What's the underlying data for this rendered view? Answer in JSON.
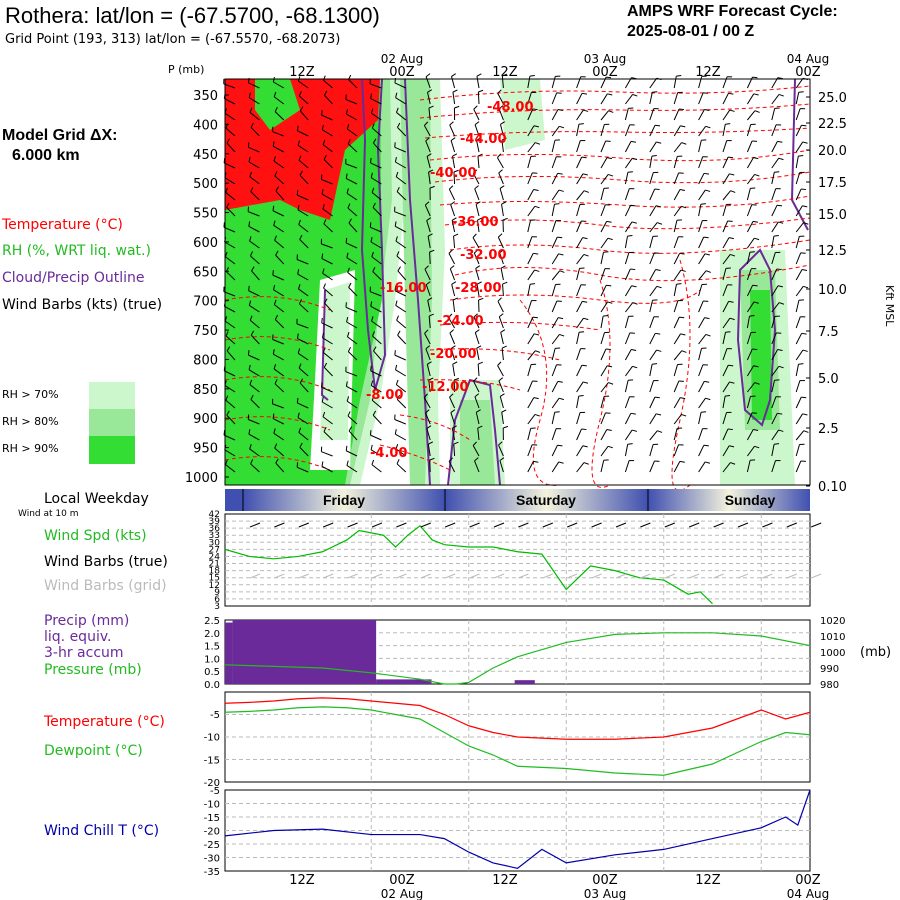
{
  "header": {
    "title": "Rothera:  lat/lon = (-67.5700, -68.1300)",
    "grid_point": "Grid Point (193, 313) lat/lon = (-67.5570, -68.2073)",
    "cycle_label": "AMPS WRF Forecast Cycle:",
    "cycle_value": "2025-08-01 / 00  Z"
  },
  "model_grid": {
    "line1": "Model Grid ΔX:",
    "line2": "6.000 km"
  },
  "legend": {
    "temperature": "Temperature (°C)",
    "rh": "RH (%, WRT liq. wat.)",
    "cloud": "Cloud/Precip Outline",
    "wind": "Wind Barbs (kts) (true)",
    "rh_levels": [
      {
        "label": "RH > 70%",
        "color": "#ccf7cc"
      },
      {
        "label": "RH > 80%",
        "color": "#99e899"
      },
      {
        "label": "RH > 90%",
        "color": "#33dd33"
      }
    ]
  },
  "colors": {
    "temp": "#ff0000",
    "rh90": "#33dd33",
    "rh80": "#99e899",
    "rh70": "#ccf7cc",
    "cloud": "#6a2a9a",
    "wind": "#00bb00",
    "grid_barb": "#bbbbbb",
    "precip": "#6a2a9a",
    "pressure": "#22bb22",
    "windchill": "#0000aa",
    "hot": "#ff0000"
  },
  "time_axis": {
    "top_ticks": [
      "12Z",
      "00Z",
      "12Z",
      "00Z",
      "12Z",
      "00Z"
    ],
    "top_dates": [
      "02 Aug",
      "03 Aug",
      "04 Aug"
    ],
    "bottom_ticks": [
      "12Z",
      "00Z",
      "12Z",
      "00Z",
      "12Z",
      "00Z"
    ],
    "bottom_dates": [
      "02 Aug",
      "03 Aug",
      "04 Aug"
    ]
  },
  "cross_section": {
    "p_label": "P (mb)",
    "pressure_levels": [
      "350",
      "400",
      "450",
      "500",
      "550",
      "600",
      "650",
      "700",
      "750",
      "800",
      "850",
      "900",
      "950",
      "1000"
    ],
    "height_label": "Kft MSL",
    "heights": [
      "25.0",
      "22.5",
      "20.0",
      "17.5",
      "15.0",
      "12.5",
      "10.0",
      "7.5",
      "5.0",
      "2.5",
      "0.10"
    ],
    "isotherm_labels": [
      "-48.00",
      "-44.00",
      "-40.00",
      "-36.00",
      "-32.00",
      "-28.00",
      "-24.00",
      "-20.00",
      "-16.00",
      "-12.00",
      "-8.00",
      "-4.00"
    ]
  },
  "weekday": {
    "label": "Local Weekday",
    "days": [
      "Friday",
      "Saturday",
      "Sunday"
    ]
  },
  "chart_data": [
    {
      "type": "line",
      "panel": "wind",
      "legend": [
        "Wind Spd (kts)",
        "Wind Barbs (true)",
        "Wind Barbs (grid)"
      ],
      "subtitle": "Wind at 10 m",
      "yticks": [
        "42",
        "39",
        "36",
        "33",
        "30",
        "27",
        "24",
        "21",
        "18",
        "15",
        "12",
        "9",
        "6",
        "3"
      ],
      "ylim": [
        3,
        42
      ],
      "x_hours": [
        0,
        6,
        12,
        18,
        24,
        30,
        33,
        36,
        39,
        42,
        45,
        48,
        51,
        54,
        60,
        66,
        72,
        78,
        84,
        90,
        96,
        102,
        108,
        114,
        117,
        120
      ],
      "series": [
        {
          "name": "Wind Spd (kts)",
          "values": [
            27,
            24,
            23,
            24,
            26,
            31,
            35,
            34,
            33,
            28,
            33,
            37,
            31,
            29,
            28,
            28,
            26,
            25,
            10,
            20,
            18,
            15,
            14,
            8,
            9,
            4
          ]
        }
      ]
    },
    {
      "type": "bar",
      "panel": "precip",
      "legend": [
        "Precip (mm)",
        "liq. equiv.",
        "3-hr accum",
        "Pressure (mb)"
      ],
      "yticks_left": [
        "2.5",
        "2.0",
        "1.5",
        "1.0",
        "0.5",
        "0.0"
      ],
      "ylim_left": [
        0,
        2.5
      ],
      "yticks_right": [
        "1020",
        "1010",
        "1000",
        "990",
        "980"
      ],
      "ylim_right": [
        980,
        1020
      ],
      "right_unit": "(mb)",
      "precip_bars": [
        {
          "start": 0,
          "end": 3,
          "value": 2.4
        },
        {
          "start": 3,
          "end": 60,
          "value": 2.5
        },
        {
          "start": 60,
          "end": 82,
          "value": 0.18
        },
        {
          "start": 115,
          "end": 123,
          "value": 0.15
        }
      ],
      "pressure": {
        "x_hours": [
          0,
          12,
          24,
          36,
          48,
          54,
          57,
          60,
          66,
          72,
          84,
          96,
          108,
          120,
          132,
          144
        ],
        "values": [
          992,
          991,
          990,
          987,
          983,
          980,
          980,
          981,
          990,
          997,
          1006,
          1011,
          1012,
          1012,
          1010,
          1004
        ]
      }
    },
    {
      "type": "line",
      "panel": "temperature",
      "legend": [
        "Temperature (°C)",
        "Dewpoint (°C)"
      ],
      "yticks": [
        "-5",
        "-10",
        "-15",
        "-20"
      ],
      "ylim": [
        -20,
        0
      ],
      "x_hours": [
        0,
        6,
        12,
        18,
        24,
        30,
        36,
        42,
        48,
        54,
        60,
        66,
        72,
        84,
        96,
        108,
        120,
        132,
        138,
        144
      ],
      "series": [
        {
          "name": "Temperature (°C)",
          "values": [
            -2.5,
            -2.3,
            -2,
            -1.5,
            -1.3,
            -1.5,
            -2,
            -2.5,
            -3,
            -5,
            -7.5,
            -9,
            -10,
            -10.5,
            -10.5,
            -10,
            -8,
            -4,
            -6,
            -4.5
          ]
        },
        {
          "name": "Dewpoint (°C)",
          "values": [
            -4.5,
            -4.3,
            -4,
            -3.5,
            -3.3,
            -3.5,
            -4,
            -5,
            -6,
            -9,
            -12,
            -14,
            -16.5,
            -17,
            -18,
            -18.5,
            -16,
            -11,
            -9,
            -9.5
          ]
        }
      ]
    },
    {
      "type": "line",
      "panel": "windchill",
      "legend": [
        "Wind Chill T (°C)"
      ],
      "yticks": [
        "-5",
        "-10",
        "-15",
        "-20",
        "-25",
        "-30",
        "-35"
      ],
      "ylim": [
        -35,
        -5
      ],
      "x_hours": [
        0,
        12,
        24,
        36,
        48,
        54,
        60,
        66,
        72,
        78,
        84,
        96,
        108,
        120,
        132,
        138,
        141,
        144
      ],
      "series": [
        {
          "name": "Wind Chill T (°C)",
          "values": [
            -22,
            -20,
            -19.5,
            -21.5,
            -21.5,
            -23,
            -28,
            -32,
            -34,
            -27,
            -32,
            -29,
            -27,
            -23,
            -19,
            -15,
            -18,
            -5
          ]
        }
      ]
    }
  ]
}
